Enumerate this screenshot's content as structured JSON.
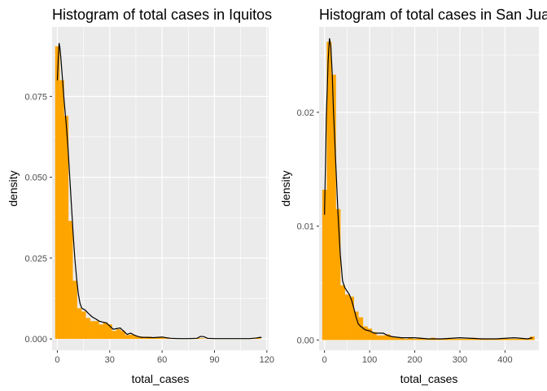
{
  "chart_data": [
    {
      "type": "bar",
      "title": "Histogram of total cases in Iquitos",
      "xlabel": "total_cases",
      "ylabel": "density",
      "xlim": [
        -3,
        121
      ],
      "ylim": [
        -0.0035,
        0.0965
      ],
      "xticks": [
        0,
        30,
        60,
        90,
        120
      ],
      "xtick_labels": [
        "0",
        "30",
        "60",
        "90",
        "120"
      ],
      "yticks": [
        0.0,
        0.025,
        0.05,
        0.075
      ],
      "ytick_labels": [
        "0.000",
        "0.025",
        "0.050",
        "0.075"
      ],
      "grid": true,
      "bar_color": "#FFA500",
      "line_color": "#000000",
      "panel_bg": "#EBEBEB",
      "bin_width": 2.5,
      "bins_start": -1.25,
      "histogram_densities": [
        0.0905,
        0.08,
        0.069,
        0.0365,
        0.018,
        0.0095,
        0.0085,
        0.0065,
        0.0055,
        0.0055,
        0.0045,
        0.005,
        0.0045,
        0.0025,
        0.003,
        0.0025,
        0.0012,
        0.0013,
        0.0009,
        0.0008,
        0.0006,
        0.0007,
        0.0005,
        0.0005,
        0.0004,
        0.0002,
        0.0001,
        0.0001,
        0.0001,
        0.0001,
        0.0001,
        0.0001,
        0.0003,
        0.0002,
        0.0001,
        0.0001,
        0.0001,
        0.0001,
        0.0001,
        0.0001,
        0.0001,
        0.0001,
        0.0001,
        0.0001,
        0.0001,
        0.0001,
        0.0003
      ],
      "density_curve": {
        "x": [
          0,
          0.5,
          1,
          1.5,
          2,
          3,
          4,
          5,
          6,
          7,
          8,
          9,
          10,
          11,
          12,
          13,
          14,
          15,
          16,
          18,
          20,
          22,
          24,
          26,
          28,
          30,
          32,
          34,
          36,
          38,
          40,
          42,
          44,
          46,
          48,
          50,
          55,
          60,
          62,
          65,
          70,
          75,
          80,
          82,
          84,
          86,
          90,
          100,
          110,
          114,
          116,
          117
        ],
        "y": [
          0.08,
          0.086,
          0.0915,
          0.09,
          0.087,
          0.08,
          0.073,
          0.067,
          0.06,
          0.051,
          0.042,
          0.033,
          0.025,
          0.019,
          0.014,
          0.011,
          0.0095,
          0.0092,
          0.0089,
          0.0078,
          0.0068,
          0.0062,
          0.0055,
          0.0052,
          0.005,
          0.004,
          0.003,
          0.0032,
          0.0034,
          0.0024,
          0.0014,
          0.0018,
          0.0012,
          0.0008,
          0.0005,
          0.0005,
          0.0004,
          0.0006,
          0.0004,
          0.0002,
          0.0001,
          0.0001,
          0.0002,
          0.0008,
          0.0007,
          0.0002,
          0.0001,
          0.0001,
          0.0001,
          0.0003,
          0.0005,
          0.0004
        ]
      }
    },
    {
      "type": "bar",
      "title": "Histogram of total cases in San Juan",
      "xlabel": "total_cases",
      "ylabel": "density",
      "xlim": [
        -12,
        475
      ],
      "ylim": [
        -0.0009,
        0.0275
      ],
      "xticks": [
        0,
        100,
        200,
        300,
        400
      ],
      "xtick_labels": [
        "0",
        "100",
        "200",
        "300",
        "400"
      ],
      "yticks": [
        0.0,
        0.01,
        0.02
      ],
      "ytick_labels": [
        "0.00",
        "0.01",
        "0.02"
      ],
      "grid": true,
      "bar_color": "#FFA500",
      "line_color": "#000000",
      "panel_bg": "#EBEBEB",
      "bin_width": 10,
      "bins_start": -5,
      "histogram_densities": [
        0.0132,
        0.0262,
        0.0233,
        0.0115,
        0.0048,
        0.004,
        0.0038,
        0.0025,
        0.002,
        0.0012,
        0.001,
        0.0007,
        0.0004,
        0.0004,
        0.0005,
        0.0003,
        0.0002,
        0.0002,
        0.0001,
        0.0002,
        0.0001,
        0.0002,
        0.0001,
        0.0001,
        0.0002,
        0.0001,
        0.0001,
        0.0001,
        0.0001,
        0.0001,
        0.0001,
        0.0001,
        0.0001,
        0.0002,
        0.0001,
        0.0001,
        0.0001,
        0.0001,
        0.0001,
        0.0001,
        0.0001,
        0.0001,
        0.0001,
        0.0001,
        0.0001,
        0.0001,
        0.0003
      ],
      "density_curve": {
        "x": [
          0,
          4,
          8,
          11,
          14,
          17,
          20,
          25,
          30,
          35,
          40,
          45,
          50,
          55,
          60,
          65,
          70,
          75,
          80,
          90,
          100,
          110,
          120,
          130,
          140,
          150,
          170,
          200,
          230,
          260,
          300,
          350,
          380,
          420,
          450,
          461
        ],
        "y": [
          0.011,
          0.0195,
          0.0245,
          0.0265,
          0.0258,
          0.0235,
          0.02,
          0.0155,
          0.011,
          0.0075,
          0.0052,
          0.0046,
          0.0043,
          0.004,
          0.0035,
          0.0028,
          0.002,
          0.0014,
          0.0012,
          0.0009,
          0.0008,
          0.0006,
          0.0006,
          0.0006,
          0.0004,
          0.0003,
          0.0002,
          0.0002,
          0.0001,
          0.0001,
          0.0002,
          0.0001,
          0.0001,
          0.0002,
          0.0001,
          0.0002
        ]
      }
    }
  ]
}
